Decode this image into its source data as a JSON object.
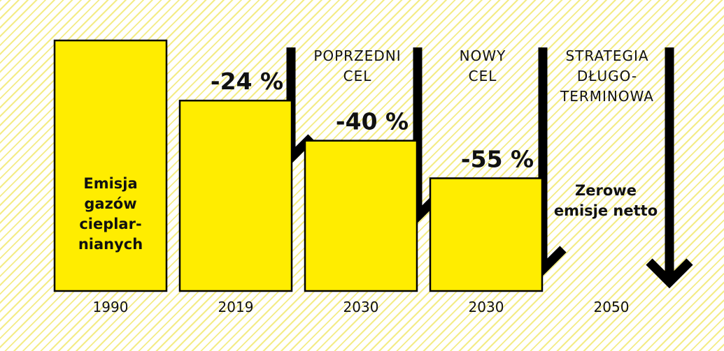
{
  "chart_data": {
    "type": "bar",
    "categories": [
      "1990",
      "2019",
      "2030",
      "2030",
      "2050"
    ],
    "values": [
      100,
      76,
      60,
      45,
      0
    ],
    "value_labels": [
      "",
      "-24 %",
      "-40 %",
      "-55 %",
      ""
    ],
    "bar_texts": [
      "Emisja gazów ciepalr-nianych",
      "",
      "",
      "",
      "Zerowe emisje netto"
    ],
    "bar_text_lines": [
      [
        "Emisja",
        "gazów",
        "cieplar-",
        "nianych"
      ],
      [],
      [],
      [],
      [
        "Zerowe",
        "emisje netto"
      ]
    ],
    "arrow_labels": [
      [],
      [
        "POPRZEDNI",
        "CEL"
      ],
      [
        "NOWY",
        "CEL"
      ],
      [
        "STRATEGIA",
        "DŁUGO-",
        "TERMINOWA"
      ]
    ],
    "ylim": [
      0,
      100
    ],
    "title": "",
    "xlabel": "",
    "ylabel": "",
    "colors": {
      "bar": "#ffed00",
      "stroke": "#000000",
      "hatch": "#f4ec86",
      "arrow": "#000000"
    }
  }
}
